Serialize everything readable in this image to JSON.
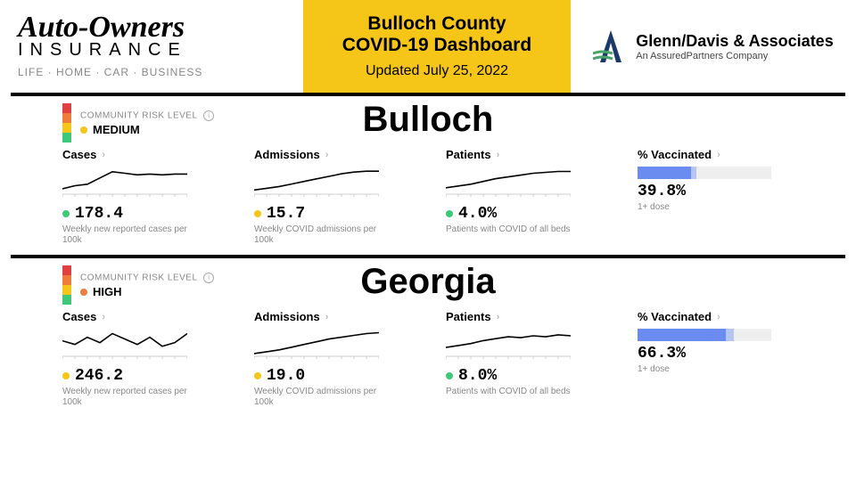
{
  "header": {
    "left_sponsor": {
      "line1": "Auto-Owners",
      "line2": "INSURANCE",
      "tagline": "LIFE · HOME · CAR · BUSINESS"
    },
    "center": {
      "title_l1": "Bulloch County",
      "title_l2": "COVID-19 Dashboard",
      "date_line": "Updated July 25, 2022",
      "bg_color": "#f5c518"
    },
    "right_sponsor": {
      "name": "Glenn/Davis & Associates",
      "sub": "An AssuredPartners Company",
      "mark_color1": "#1b3a6b",
      "mark_color2": "#4aa36a"
    }
  },
  "risk_colors": {
    "low": "#3ec97a",
    "medium": "#f5c518",
    "high": "#f07c3a",
    "severe": "#e04040"
  },
  "regions": [
    {
      "name": "Bulloch",
      "risk_label": "COMMUNITY RISK LEVEL",
      "risk_value": "MEDIUM",
      "risk_dot_color": "#f5c518",
      "metrics": {
        "cases": {
          "label": "Cases",
          "value": "178.4",
          "dot_color": "#3ec97a",
          "desc": "Weekly new reported cases per 100k",
          "spark": [
            8,
            12,
            14,
            22,
            30,
            28,
            26,
            27,
            26,
            27,
            27
          ],
          "ymax": 35
        },
        "admissions": {
          "label": "Admissions",
          "value": "15.7",
          "dot_color": "#f5c518",
          "desc": "Weekly COVID admissions per 100k",
          "spark": [
            6,
            8,
            10,
            13,
            16,
            19,
            22,
            25,
            27,
            28,
            28
          ],
          "ymax": 32
        },
        "patients": {
          "label": "Patients",
          "value": "4.0%",
          "dot_color": "#3ec97a",
          "desc": "Patients with COVID of all beds",
          "spark": [
            8,
            10,
            12,
            15,
            18,
            20,
            22,
            24,
            25,
            26,
            26
          ],
          "ymax": 30
        },
        "vaccinated": {
          "label": "% Vaccinated",
          "value": "39.8%",
          "sub": "1+ dose",
          "pct_primary": 39.8,
          "pct_secondary": 44
        }
      }
    },
    {
      "name": "Georgia",
      "risk_label": "COMMUNITY RISK LEVEL",
      "risk_value": "HIGH",
      "risk_dot_color": "#f07c3a",
      "metrics": {
        "cases": {
          "label": "Cases",
          "value": "246.2",
          "dot_color": "#f5c518",
          "desc": "Weekly new reported cases per 100k",
          "spark": [
            18,
            14,
            22,
            16,
            26,
            20,
            14,
            22,
            12,
            16,
            26
          ],
          "ymax": 30
        },
        "admissions": {
          "label": "Admissions",
          "value": "19.0",
          "dot_color": "#f5c518",
          "desc": "Weekly COVID admissions per 100k",
          "spark": [
            4,
            6,
            8,
            11,
            14,
            17,
            20,
            22,
            24,
            26,
            27
          ],
          "ymax": 30
        },
        "patients": {
          "label": "Patients",
          "value": "8.0%",
          "dot_color": "#3ec97a",
          "desc": "Patients with COVID of all beds",
          "spark": [
            10,
            12,
            14,
            17,
            19,
            21,
            20,
            22,
            21,
            23,
            22
          ],
          "ymax": 28
        },
        "vaccinated": {
          "label": "% Vaccinated",
          "value": "66.3%",
          "sub": "1+ dose",
          "pct_primary": 66.3,
          "pct_secondary": 72
        }
      }
    }
  ]
}
